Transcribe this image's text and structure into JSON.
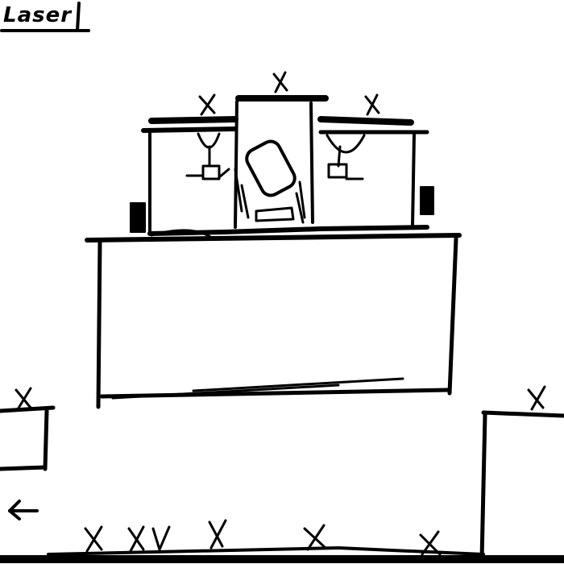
{
  "level": {
    "title": "Laser"
  },
  "markers": {
    "spawn_symbol": "x"
  },
  "icons": {
    "back": "arrow-left-icon"
  },
  "colors": {
    "ink": "#000000",
    "background": "#ffffff"
  }
}
